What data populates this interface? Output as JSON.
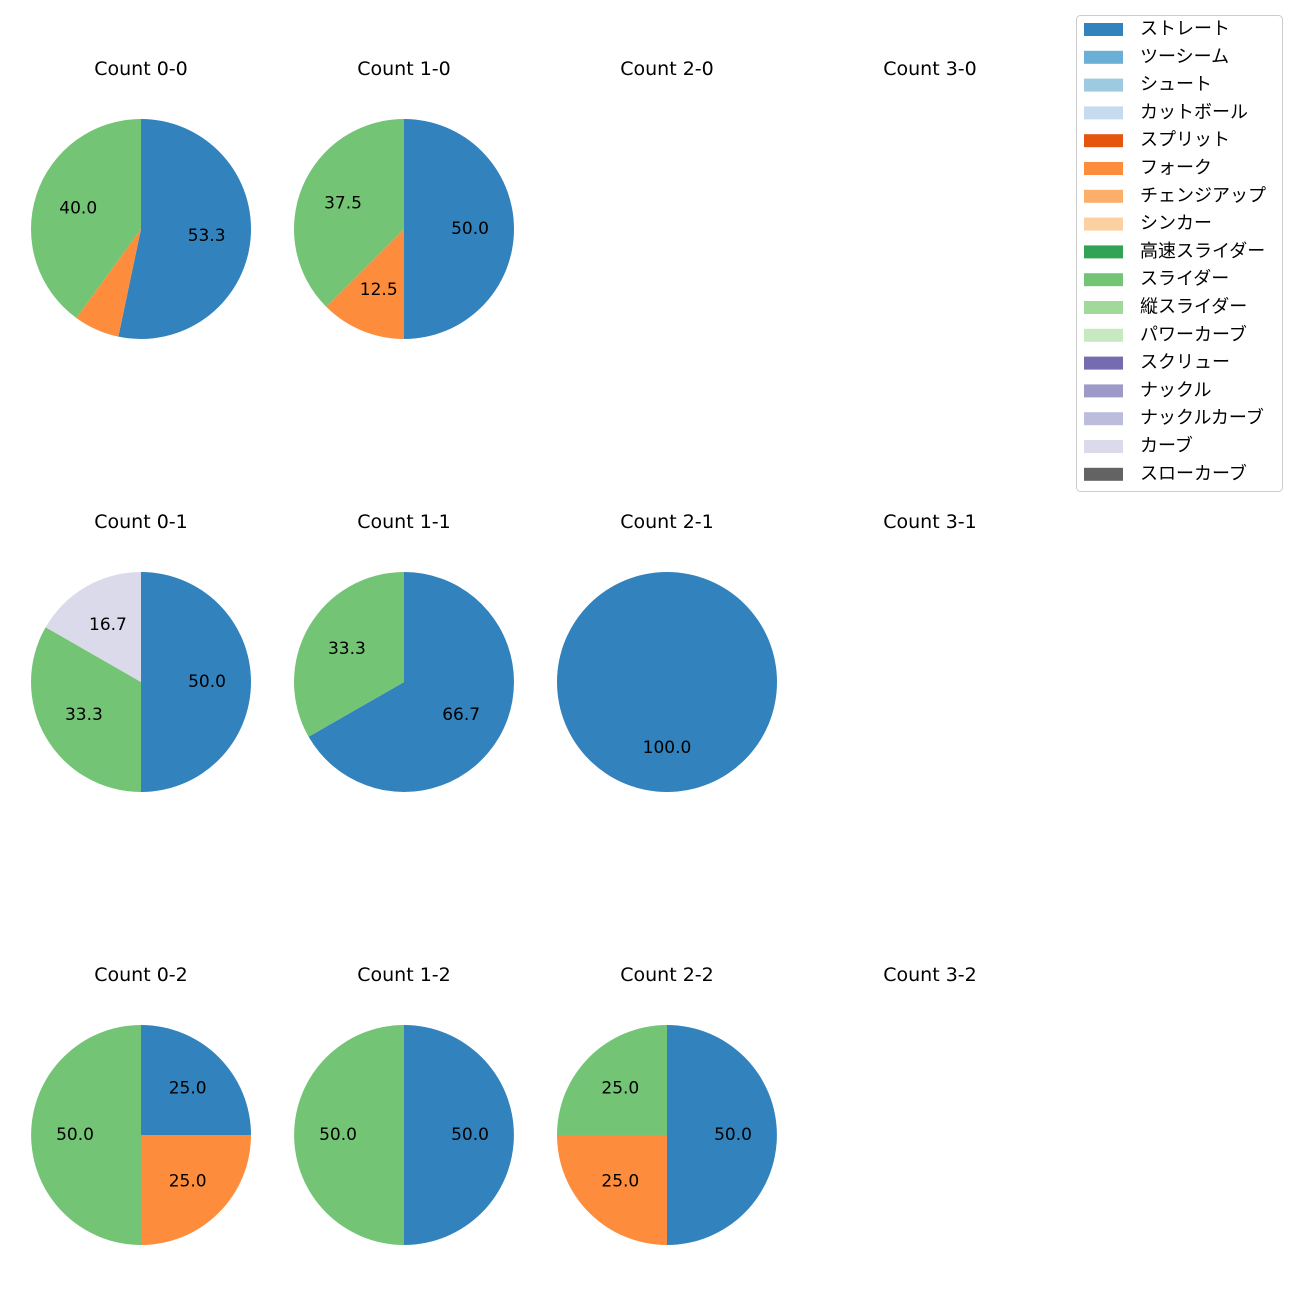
{
  "legend": {
    "items": [
      {
        "label": "ストレート",
        "color": "#3182bd"
      },
      {
        "label": "ツーシーム",
        "color": "#6baed6"
      },
      {
        "label": "シュート",
        "color": "#9ecae1"
      },
      {
        "label": "カットボール",
        "color": "#c6dbef"
      },
      {
        "label": "スプリット",
        "color": "#e6550d"
      },
      {
        "label": "フォーク",
        "color": "#fd8d3c"
      },
      {
        "label": "チェンジアップ",
        "color": "#fdae6b"
      },
      {
        "label": "シンカー",
        "color": "#fdd0a2"
      },
      {
        "label": "高速スライダー",
        "color": "#31a354"
      },
      {
        "label": "スライダー",
        "color": "#74c476"
      },
      {
        "label": "縦スライダー",
        "color": "#a1d99b"
      },
      {
        "label": "パワーカーブ",
        "color": "#c7e9c0"
      },
      {
        "label": "スクリュー",
        "color": "#756bb1"
      },
      {
        "label": "ナックル",
        "color": "#9e9ac8"
      },
      {
        "label": "ナックルカーブ",
        "color": "#bcbddc"
      },
      {
        "label": "カーブ",
        "color": "#dadaeb"
      },
      {
        "label": "スローカーブ",
        "color": "#636363"
      }
    ]
  },
  "chart_data": [
    {
      "type": "pie",
      "title": "Count 0-0",
      "slices": [
        {
          "pitch": "ストレート",
          "value": 53.3
        },
        {
          "pitch": "フォーク",
          "value": 6.7,
          "label": ""
        },
        {
          "pitch": "スライダー",
          "value": 40.0
        }
      ]
    },
    {
      "type": "pie",
      "title": "Count 1-0",
      "slices": [
        {
          "pitch": "ストレート",
          "value": 50.0
        },
        {
          "pitch": "フォーク",
          "value": 12.5
        },
        {
          "pitch": "スライダー",
          "value": 37.5
        }
      ]
    },
    {
      "type": "pie",
      "title": "Count 2-0",
      "slices": []
    },
    {
      "type": "pie",
      "title": "Count 3-0",
      "slices": []
    },
    {
      "type": "pie",
      "title": "Count 0-1",
      "slices": [
        {
          "pitch": "ストレート",
          "value": 50.0
        },
        {
          "pitch": "スライダー",
          "value": 33.3
        },
        {
          "pitch": "カーブ",
          "value": 16.7
        }
      ]
    },
    {
      "type": "pie",
      "title": "Count 1-1",
      "slices": [
        {
          "pitch": "ストレート",
          "value": 66.7
        },
        {
          "pitch": "スライダー",
          "value": 33.3
        }
      ]
    },
    {
      "type": "pie",
      "title": "Count 2-1",
      "slices": [
        {
          "pitch": "ストレート",
          "value": 100.0
        }
      ]
    },
    {
      "type": "pie",
      "title": "Count 3-1",
      "slices": []
    },
    {
      "type": "pie",
      "title": "Count 0-2",
      "slices": [
        {
          "pitch": "ストレート",
          "value": 25.0
        },
        {
          "pitch": "フォーク",
          "value": 25.0
        },
        {
          "pitch": "スライダー",
          "value": 50.0
        }
      ]
    },
    {
      "type": "pie",
      "title": "Count 1-2",
      "slices": [
        {
          "pitch": "ストレート",
          "value": 50.0
        },
        {
          "pitch": "スライダー",
          "value": 50.0
        }
      ]
    },
    {
      "type": "pie",
      "title": "Count 2-2",
      "slices": [
        {
          "pitch": "ストレート",
          "value": 50.0
        },
        {
          "pitch": "フォーク",
          "value": 25.0
        },
        {
          "pitch": "スライダー",
          "value": 25.0
        }
      ]
    },
    {
      "type": "pie",
      "title": "Count 3-2",
      "slices": []
    }
  ]
}
